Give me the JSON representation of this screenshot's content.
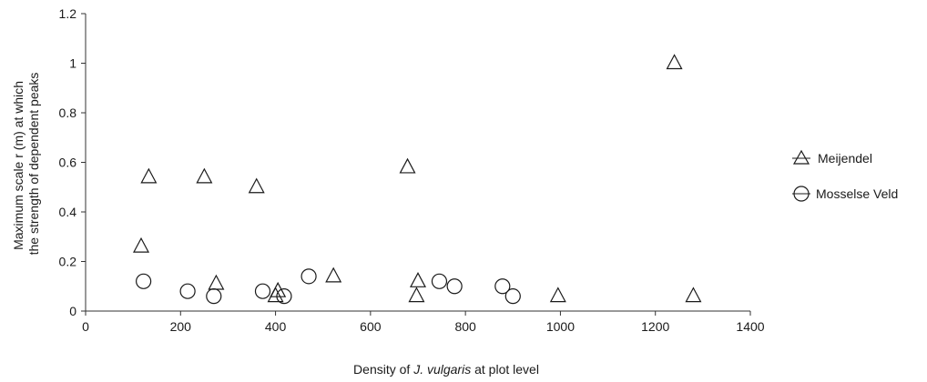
{
  "chart_data": {
    "type": "scatter",
    "xlabel_parts": [
      "Density of ",
      "J. vulgaris",
      " at plot level"
    ],
    "ylabel_lines": [
      "Maximum scale r (m) at which",
      "the strength of dependent peaks"
    ],
    "xlim": [
      0,
      1400
    ],
    "ylim": [
      0,
      1.2
    ],
    "xticks": [
      0,
      200,
      400,
      600,
      800,
      1000,
      1200,
      1400
    ],
    "xtick_labels": [
      "0",
      "200",
      "400",
      "600",
      "800",
      "1000",
      "1200",
      "1400"
    ],
    "yticks": [
      0,
      0.2,
      0.4,
      0.6,
      0.8,
      1.0,
      1.2
    ],
    "ytick_labels": [
      "0",
      "0.2",
      "0.4",
      "0.6",
      "0.8",
      "1",
      "1.2"
    ],
    "grid": false,
    "legend_position": "right",
    "series": [
      {
        "name": "Meijendel",
        "marker": "triangle",
        "points": [
          {
            "x": 117,
            "y": 0.26
          },
          {
            "x": 133,
            "y": 0.54
          },
          {
            "x": 250,
            "y": 0.54
          },
          {
            "x": 275,
            "y": 0.11
          },
          {
            "x": 360,
            "y": 0.5
          },
          {
            "x": 400,
            "y": 0.06
          },
          {
            "x": 405,
            "y": 0.08
          },
          {
            "x": 522,
            "y": 0.14
          },
          {
            "x": 678,
            "y": 0.58
          },
          {
            "x": 697,
            "y": 0.06
          },
          {
            "x": 700,
            "y": 0.12
          },
          {
            "x": 995,
            "y": 0.06
          },
          {
            "x": 1240,
            "y": 1.0
          },
          {
            "x": 1280,
            "y": 0.06
          }
        ]
      },
      {
        "name": "Mosselse Veld",
        "marker": "circle",
        "points": [
          {
            "x": 122,
            "y": 0.12
          },
          {
            "x": 215,
            "y": 0.08
          },
          {
            "x": 270,
            "y": 0.06
          },
          {
            "x": 373,
            "y": 0.08
          },
          {
            "x": 418,
            "y": 0.06
          },
          {
            "x": 470,
            "y": 0.14
          },
          {
            "x": 745,
            "y": 0.12
          },
          {
            "x": 777,
            "y": 0.1
          },
          {
            "x": 878,
            "y": 0.1
          },
          {
            "x": 900,
            "y": 0.06
          }
        ]
      }
    ]
  }
}
